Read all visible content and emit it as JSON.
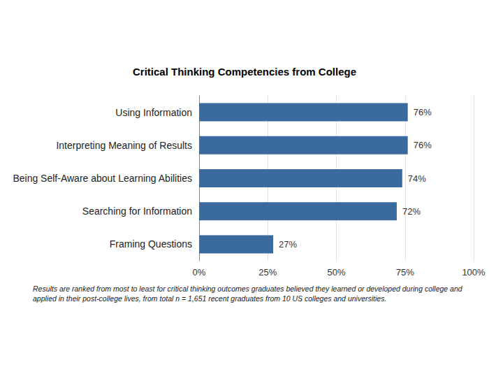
{
  "chart_data": {
    "type": "bar",
    "orientation": "horizontal",
    "title": "Critical Thinking Competencies from College",
    "annotation": "Results are ranked from most to least for critical thinking outcomes graduates believed they learned or developed during college and applied in their post-college lives, from total n = 1,651 recent graduates from 10 US colleges and universities.",
    "categories": [
      "Using Information",
      "Interpreting Meaning of Results",
      "Being Self-Aware about Learning Abilities",
      "Searching for Information",
      "Framing Questions"
    ],
    "values": [
      76,
      76,
      74,
      72,
      27
    ],
    "value_labels": [
      "76%",
      "76%",
      "74%",
      "72%",
      "27%"
    ],
    "data_labels": true,
    "color": "#3b6b9e",
    "xlim": [
      0,
      100
    ],
    "xticks": [
      {
        "value": 0,
        "label": "0%"
      },
      {
        "value": 25,
        "label": "25%"
      },
      {
        "value": 50,
        "label": "50%"
      },
      {
        "value": 75,
        "label": "75%"
      },
      {
        "value": 100,
        "label": "100%"
      }
    ],
    "grid": true
  }
}
